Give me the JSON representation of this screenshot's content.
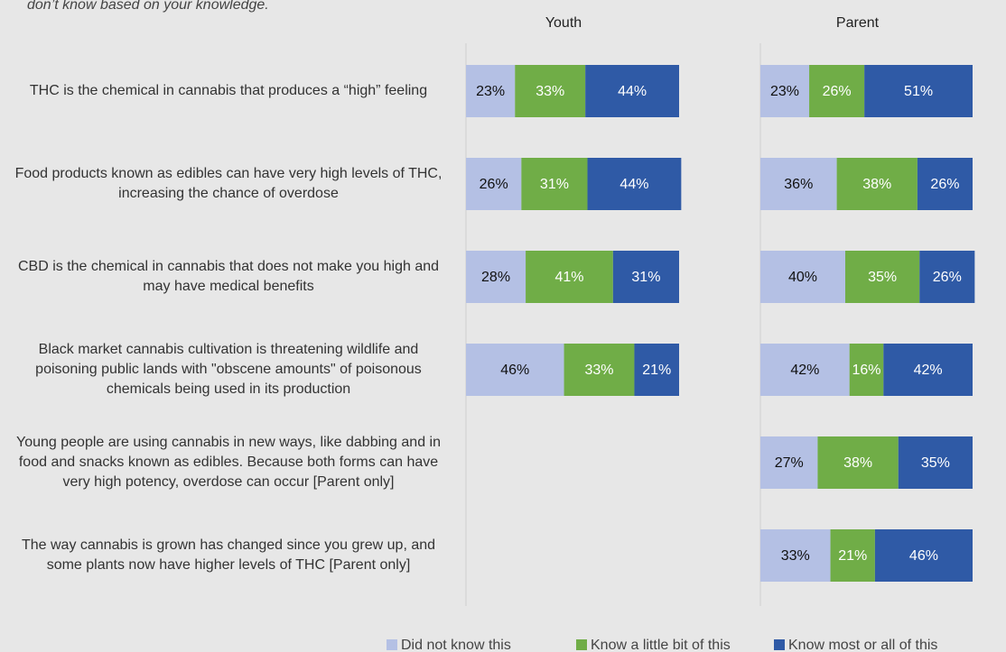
{
  "chart_data": {
    "type": "bar",
    "orientation": "horizontal",
    "stacked": true,
    "subtitle": "don’t know based on your knowledge.",
    "xlim": [
      0,
      100
    ],
    "categories": [
      "THC is the chemical in cannabis that produces a “high” feeling",
      "Food products known as edibles can have very high levels of THC, increasing the chance of overdose",
      "CBD is the chemical in cannabis that does not make you high and may have medical benefits",
      "Black market cannabis cultivation is threatening wildlife and poisoning public lands with \"obscene amounts\" of poisonous chemicals being used in its production",
      "Young people are using cannabis in new ways, like dabbing and in food and snacks known as edibles. Because both forms can have very high potency, overdose can occur [Parent only]",
      "The way cannabis is grown has changed since you grew up, and some plants now have higher levels of THC [Parent only]"
    ],
    "legend": [
      {
        "name": "Did not know this",
        "color": "#b4c0e4"
      },
      {
        "name": "Know a little bit of this",
        "color": "#70ad47"
      },
      {
        "name": "Know most or all of this",
        "color": "#2f5aa6"
      }
    ],
    "panels": [
      {
        "title": "Youth",
        "series": [
          {
            "values": [
              23,
              26,
              28,
              46,
              null,
              null
            ],
            "value_labels": [
              "23%",
              "26%",
              "28%",
              "46%",
              null,
              null
            ]
          },
          {
            "values": [
              33,
              31,
              41,
              33,
              null,
              null
            ],
            "value_labels": [
              "33%",
              "31%",
              "41%",
              "33%",
              null,
              null
            ]
          },
          {
            "values": [
              44,
              44,
              31,
              21,
              null,
              null
            ],
            "value_labels": [
              "44%",
              "44%",
              "31%",
              "21%",
              null,
              null
            ]
          }
        ]
      },
      {
        "title": "Parent",
        "series": [
          {
            "values": [
              23,
              36,
              40,
              42,
              27,
              33
            ],
            "value_labels": [
              "23%",
              "36%",
              "40%",
              "42%",
              "27%",
              "33%"
            ]
          },
          {
            "values": [
              26,
              38,
              35,
              16,
              38,
              21
            ],
            "value_labels": [
              "26%",
              "38%",
              "35%",
              "16%",
              "38%",
              "21%"
            ]
          },
          {
            "values": [
              51,
              26,
              26,
              42,
              35,
              46
            ],
            "value_labels": [
              "51%",
              "26%",
              "26%",
              "42%",
              "35%",
              "46%"
            ]
          }
        ]
      }
    ]
  }
}
